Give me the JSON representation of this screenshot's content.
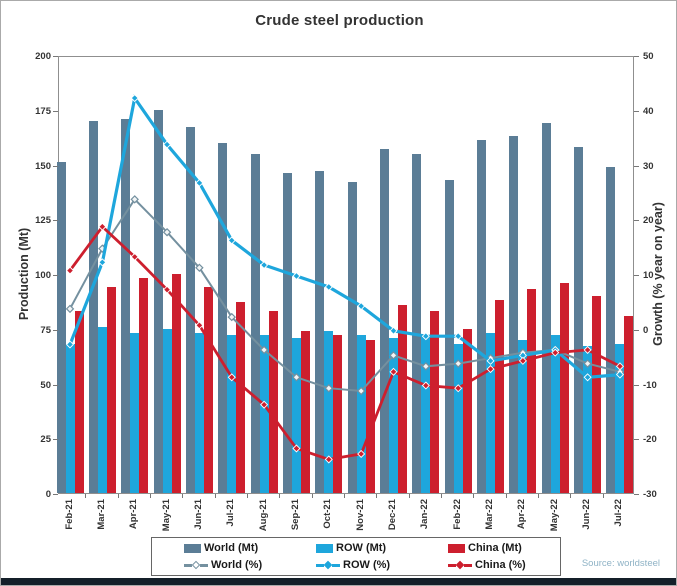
{
  "title": "Crude steel production",
  "source": "Source: worldsteel",
  "colors": {
    "world_bar": "#5b7d96",
    "row_bar": "#1ea6dc",
    "china_bar": "#cd1f2e",
    "world_line": "#74909f",
    "row_line": "#1ea6dc",
    "china_line": "#cd1f2e",
    "axis": "#777777",
    "text": "#333333",
    "source_text": "#8fb3c6"
  },
  "chart_data": {
    "type": "bar",
    "subtype": "grouped bars (Mt, left axis) + lines (% growth, right axis)",
    "title": "Crude steel production",
    "categories": [
      "Feb-21",
      "Mar-21",
      "Apr-21",
      "May-21",
      "Jun-21",
      "Jul-21",
      "Aug-21",
      "Sep-21",
      "Oct-21",
      "Nov-21",
      "Dec-21",
      "Jan-22",
      "Feb-22",
      "Mar-22",
      "Apr-22",
      "May-22",
      "Jun-22",
      "Jul-22"
    ],
    "bar_series": [
      {
        "name": "World (Mt)",
        "color": "#5b7d96",
        "values": [
          151,
          170,
          171,
          175,
          167,
          160,
          155,
          146,
          147,
          142,
          157,
          155,
          143,
          161,
          163,
          169,
          158,
          149
        ]
      },
      {
        "name": "ROW (Mt)",
        "color": "#1ea6dc",
        "values": [
          68,
          76,
          73,
          75,
          73,
          72,
          72,
          71,
          74,
          72,
          71,
          72,
          68,
          73,
          70,
          72,
          67,
          68
        ]
      },
      {
        "name": "China (Mt)",
        "color": "#cd1f2e",
        "values": [
          83,
          94,
          98,
          100,
          94,
          87,
          83,
          74,
          72,
          70,
          86,
          83,
          75,
          88,
          93,
          96,
          90,
          81
        ]
      }
    ],
    "line_series": [
      {
        "name": "World (%)",
        "color": "#74909f",
        "width": 2,
        "marker": "open",
        "values": [
          4,
          15,
          24,
          18,
          11.5,
          2.5,
          -3.5,
          -8.5,
          -10.5,
          -11,
          -4.5,
          -6.5,
          -6,
          -5,
          -4,
          -3.5,
          -6,
          -7.5
        ]
      },
      {
        "name": "ROW (%)",
        "color": "#1ea6dc",
        "width": 3.2,
        "marker": "filled",
        "values": [
          -2.5,
          12.5,
          42.5,
          34,
          27,
          16.5,
          12,
          10,
          8,
          4.5,
          0,
          -1,
          -1,
          -5.5,
          -4.5,
          -3.5,
          -8.5,
          -8
        ]
      },
      {
        "name": "China (%)",
        "color": "#cd1f2e",
        "width": 2.8,
        "marker": "filled",
        "values": [
          11,
          19,
          13.5,
          7.5,
          1,
          -8.5,
          -13.5,
          -21.5,
          -23.5,
          -22.5,
          -7.5,
          -10,
          -10.5,
          -7,
          -5.5,
          -4,
          -3.5,
          -6.5
        ]
      }
    ],
    "left_axis": {
      "label": "Production (Mt)",
      "min": 0,
      "max": 200,
      "ticks": [
        0,
        25,
        50,
        75,
        100,
        125,
        150,
        175,
        200
      ]
    },
    "right_axis": {
      "label": "Growth (% year on year)",
      "min": -30,
      "max": 50,
      "ticks": [
        -30,
        -20,
        -10,
        0,
        10,
        20,
        30,
        40,
        50
      ]
    },
    "legend_position": "bottom",
    "grid": false
  }
}
